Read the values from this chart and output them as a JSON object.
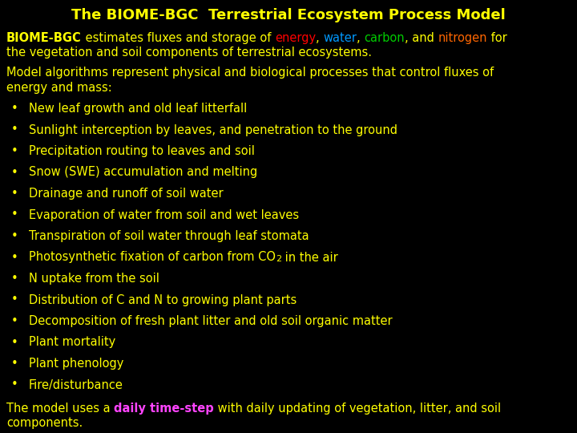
{
  "title": "The BIOME-BGC  Terrestrial Ecosystem Process Model",
  "title_color": "#ffff00",
  "bg_color": "#000000",
  "body_color": "#ffff00",
  "intro_line1_parts": [
    {
      "text": "BIOME-BGC",
      "bold": true,
      "color": "#ffff00"
    },
    {
      "text": " estimates fluxes and storage of ",
      "bold": false,
      "color": "#ffff00"
    },
    {
      "text": "energy",
      "bold": false,
      "color": "#ff0000"
    },
    {
      "text": ", ",
      "bold": false,
      "color": "#ffff00"
    },
    {
      "text": "water",
      "bold": false,
      "color": "#0099ff"
    },
    {
      "text": ", ",
      "bold": false,
      "color": "#ffff00"
    },
    {
      "text": "carbon",
      "bold": false,
      "color": "#00cc00"
    },
    {
      "text": ", and ",
      "bold": false,
      "color": "#ffff00"
    },
    {
      "text": "nitrogen",
      "bold": false,
      "color": "#ff6600"
    },
    {
      "text": " for",
      "bold": false,
      "color": "#ffff00"
    }
  ],
  "intro_line2": "the vegetation and soil components of terrestrial ecosystems.",
  "model_para": "Model algorithms represent physical and biological processes that control fluxes of\nenergy and mass:",
  "bullet_items": [
    "New leaf growth and old leaf litterfall",
    "Sunlight interception by leaves, and penetration to the ground",
    "Precipitation routing to leaves and soil",
    "Snow (SWE) accumulation and melting",
    "Drainage and runoff of soil water",
    "Evaporation of water from soil and wet leaves",
    "Transpiration of soil water through leaf stomata",
    "Photosynthetic fixation of carbon from CO₂ in the air",
    "N uptake from the soil",
    "Distribution of C and N to growing plant parts",
    "Decomposition of fresh plant litter and old soil organic matter",
    "Plant mortality",
    "Plant phenology",
    "Fire/disturbance"
  ],
  "footer_parts": [
    {
      "text": "The model uses a ",
      "color": "#ffff00",
      "bold": false
    },
    {
      "text": "daily time-step",
      "color": "#ff44ff",
      "bold": true
    },
    {
      "text": " with daily updating of vegetation, litter, and soil",
      "color": "#ffff00",
      "bold": false
    }
  ],
  "footer_line2": "components.",
  "footer_line2_color": "#ffff00",
  "fontsize_title": 13,
  "fontsize_body": 10.5,
  "fontsize_bullet": 10.5
}
